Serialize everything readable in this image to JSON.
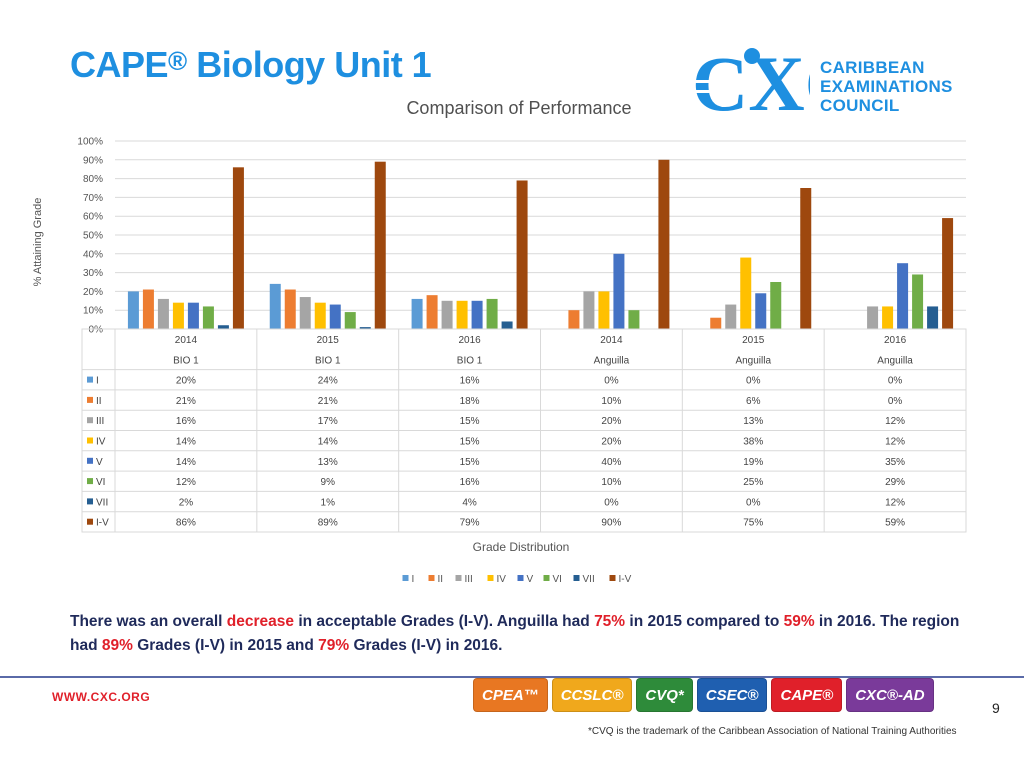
{
  "page": {
    "title": "CAPE",
    "title_reg": "®",
    "title_rest": " Biology Unit 1",
    "summary_parts": [
      {
        "text": "There was an overall ",
        "red": false
      },
      {
        "text": "decrease",
        "red": true
      },
      {
        "text": " in acceptable Grades (I-V). Anguilla had ",
        "red": false
      },
      {
        "text": "75%",
        "red": true
      },
      {
        "text": " in 2015 compared to ",
        "red": false
      },
      {
        "text": "59%",
        "red": true
      },
      {
        "text": " in 2016. The region had ",
        "red": false
      },
      {
        "text": "89%",
        "red": true
      },
      {
        "text": " Grades (I-V) in 2015 and ",
        "red": false
      },
      {
        "text": "79%",
        "red": true
      },
      {
        "text": " Grades (I-V) in 2016.",
        "red": false
      }
    ],
    "logo_text": [
      "CARIBBEAN",
      "EXAMINATIONS",
      "COUNCIL"
    ],
    "logo_letters": "CXC",
    "url": "WWW.CXC.ORG",
    "page_number": "9",
    "footnote": "*CVQ is the trademark of the Caribbean Association of National Training Authorities",
    "badges": [
      {
        "label": "CPEA™",
        "color": "#e87722"
      },
      {
        "label": "CCSLC®",
        "color": "#f0a81c"
      },
      {
        "label": "CVQ*",
        "color": "#2e8b3a"
      },
      {
        "label": "CSEC®",
        "color": "#1f5fb0"
      },
      {
        "label": "CAPE®",
        "color": "#e0202a"
      },
      {
        "label": "CXC®-AD",
        "color": "#7a3a9a"
      }
    ]
  },
  "chart_data": {
    "type": "bar",
    "title": "Comparison of Performance",
    "ylabel": "% Attaining Grade",
    "xlabel": "Grade Distribution",
    "ylim": [
      0,
      100
    ],
    "yticks": [
      "0%",
      "10%",
      "20%",
      "30%",
      "40%",
      "50%",
      "60%",
      "70%",
      "80%",
      "90%",
      "100%"
    ],
    "grid": true,
    "legend": "bottom",
    "categories": [
      {
        "year": "2014",
        "group": "BIO 1"
      },
      {
        "year": "2015",
        "group": "BIO 1"
      },
      {
        "year": "2016",
        "group": "BIO 1"
      },
      {
        "year": "2014",
        "group": "Anguilla"
      },
      {
        "year": "2015",
        "group": "Anguilla"
      },
      {
        "year": "2016",
        "group": "Anguilla"
      }
    ],
    "series": [
      {
        "name": "I",
        "color": "#5b9bd5",
        "values": [
          20,
          24,
          16,
          0,
          0,
          0
        ]
      },
      {
        "name": "II",
        "color": "#ed7d31",
        "values": [
          21,
          21,
          18,
          10,
          6,
          0
        ]
      },
      {
        "name": "III",
        "color": "#a5a5a5",
        "values": [
          16,
          17,
          15,
          20,
          13,
          12
        ]
      },
      {
        "name": "IV",
        "color": "#ffc000",
        "values": [
          14,
          14,
          15,
          20,
          38,
          12
        ]
      },
      {
        "name": "V",
        "color": "#4472c4",
        "values": [
          14,
          13,
          15,
          40,
          19,
          35
        ]
      },
      {
        "name": "VI",
        "color": "#70ad47",
        "values": [
          12,
          9,
          16,
          10,
          25,
          29
        ]
      },
      {
        "name": "VII",
        "color": "#255e91",
        "values": [
          2,
          1,
          4,
          0,
          0,
          12
        ]
      },
      {
        "name": "I-V",
        "color": "#9e480e",
        "values": [
          86,
          89,
          79,
          90,
          75,
          59
        ]
      }
    ]
  }
}
